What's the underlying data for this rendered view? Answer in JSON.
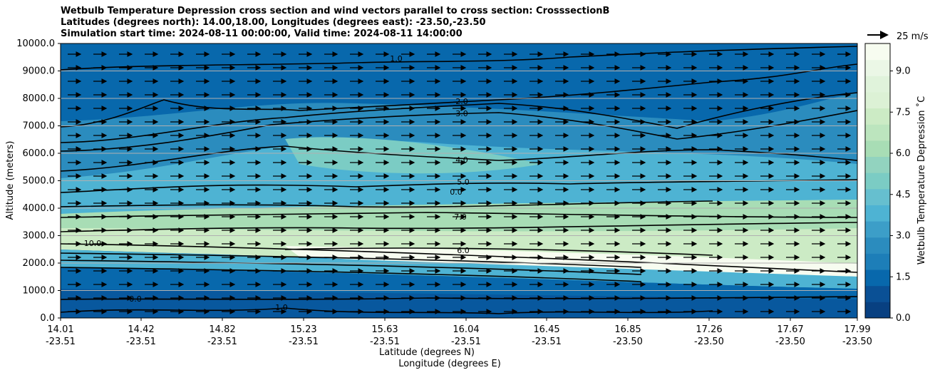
{
  "chart_data": {
    "type": "contour",
    "title": [
      "Wetbulb Temperature Depression cross section and wind vectors parallel to cross section: CrosssectionB",
      "Latitudes (degrees north): 14.00,18.00, Longitudes (degrees east): -23.50,-23.50",
      "Simulation start time: 2024-08-11 00:00:00, Valid time: 2024-08-11 14:00:00"
    ],
    "xlabel": [
      "Latitude (degrees N)",
      "Longitude (degrees E)"
    ],
    "ylabel": "Altitude (meters)",
    "ylim": [
      0,
      10000
    ],
    "y_ticks": [
      "0.0",
      "1000.0",
      "2000.0",
      "3000.0",
      "4000.0",
      "5000.0",
      "6000.0",
      "7000.0",
      "8000.0",
      "9000.0",
      "10000.0"
    ],
    "x_ticks": [
      {
        "lat": "14.01",
        "lon": "-23.51"
      },
      {
        "lat": "14.42",
        "lon": "-23.51"
      },
      {
        "lat": "14.82",
        "lon": "-23.51"
      },
      {
        "lat": "15.23",
        "lon": "-23.51"
      },
      {
        "lat": "15.63",
        "lon": "-23.51"
      },
      {
        "lat": "16.04",
        "lon": "-23.51"
      },
      {
        "lat": "16.45",
        "lon": "-23.51"
      },
      {
        "lat": "16.85",
        "lon": "-23.50"
      },
      {
        "lat": "17.26",
        "lon": "-23.50"
      },
      {
        "lat": "17.67",
        "lon": "-23.50"
      },
      {
        "lat": "17.99",
        "lon": "-23.50"
      }
    ],
    "grid": "horizontal",
    "colorbar": {
      "label": "Wetbulb Temperature Depression ˚C",
      "range": [
        0,
        10
      ],
      "ticks": [
        "0.0",
        "1.5",
        "3.0",
        "4.5",
        "6.0",
        "7.5",
        "9.0"
      ],
      "colors": [
        "#084081",
        "#0a5095",
        "#0868ac",
        "#1d7eb8",
        "#2b8cbe",
        "#3c9ec8",
        "#4eb3d3",
        "#66bfcf",
        "#7bccc4",
        "#92d3bf",
        "#a8ddb5",
        "#bce5be",
        "#ccebc5",
        "#dcf1d5",
        "#e0f3db",
        "#ebf7e6",
        "#f7fcf0"
      ]
    },
    "quiver_key": {
      "label": "25 m/s",
      "position": "top-right"
    },
    "contour_labels": [
      "1.0",
      "2.0",
      "3.0",
      "4.0",
      "5.0",
      "0.0",
      "7.0",
      "10.0",
      "6.0",
      "0.0",
      "1.0"
    ]
  }
}
